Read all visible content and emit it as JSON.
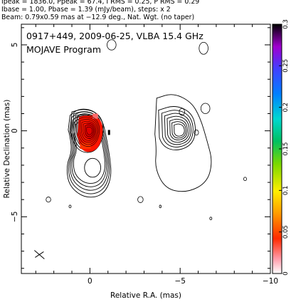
{
  "header": {
    "line1": "Ipeak = 1836.0, Ppeak = 67.4, I RMS = 0.25, P RMS = 0.29",
    "line2": "Ibase = 1.00, Pbase = 1.39 (mJy/beam), steps: x 2",
    "line3": "Beam: 0.79x0.59 mas at −12.9 deg., Nat. Wgt. (no taper)"
  },
  "chart_data": {
    "type": "contour",
    "title": "0917+449, 2009-06-25, VLBA 15.4 GHz",
    "subtitle": "MOJAVE Program",
    "xlabel": "Relative R.A. (mas)",
    "ylabel": "Relative Declination (mas)",
    "xlim": [
      3.8,
      -10
    ],
    "ylim": [
      -8.3,
      6.2
    ],
    "xticks": [
      0,
      -5,
      -10
    ],
    "xtick_labels": [
      "0",
      "−5",
      "−10"
    ],
    "yticks": [
      -5,
      0,
      5
    ],
    "ytick_labels": [
      "−5",
      "0",
      "5"
    ],
    "colorbar": {
      "range": [
        0,
        0.3
      ],
      "ticks": [
        0,
        0.05,
        0.1,
        0.15,
        0.2,
        0.25,
        0.3
      ],
      "tick_labels": [
        "0",
        "0.05",
        "0.1",
        "0.15",
        "0.2",
        "0.25",
        "0.3"
      ]
    },
    "core": {
      "x": 0,
      "y": 0
    },
    "jet_component": {
      "x": -5,
      "y": 0
    }
  }
}
